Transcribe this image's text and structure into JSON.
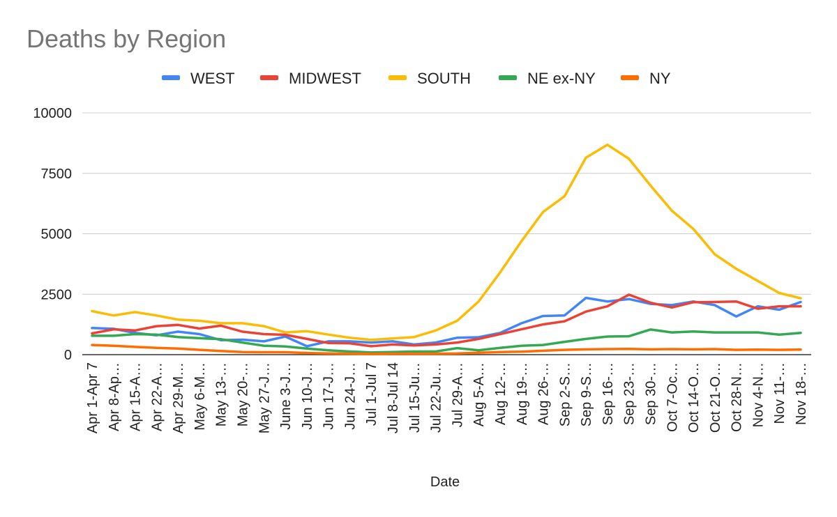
{
  "chart_data": {
    "type": "line",
    "title": "Deaths by Region",
    "xlabel": "Date",
    "ylabel": "",
    "ylim": [
      0,
      10000
    ],
    "yticks": [
      0,
      2500,
      5000,
      7500,
      10000
    ],
    "legend_position": "top",
    "grid": true,
    "categories": [
      "Apr 1-Apr 7",
      "Apr 8-Ap…",
      "Apr 15-A…",
      "Apr 22-A…",
      "Apr 29-M…",
      "May 6-M…",
      "May 13-…",
      "May 20-…",
      "May 27-J…",
      "June 3-J…",
      "Jun 10-J…",
      "Jun 17-J…",
      "Jun 24-J…",
      "Jul 1-Jul 7",
      "Jul 8-Jul 14",
      "Jul 15-Ju…",
      "Jul 22-Ju…",
      "Jul 29-A…",
      "Aug 5-A…",
      "Aug 12-…",
      "Aug 19-…",
      "Aug 26-…",
      "Sep 2-S…",
      "Sep 9-S…",
      "Sep 16-…",
      "Sep 23-…",
      "Sep 30-…",
      "Oct 7-Oc…",
      "Oct 14-O…",
      "Oct 21-O…",
      "Oct 28-N…",
      "Nov 4-N…",
      "Nov 11-…",
      "Nov 18-…"
    ],
    "series": [
      {
        "name": "WEST",
        "color": "#4285f4",
        "values": [
          1100,
          1070,
          900,
          800,
          950,
          850,
          600,
          620,
          550,
          750,
          350,
          550,
          550,
          500,
          550,
          420,
          500,
          700,
          720,
          900,
          1300,
          1600,
          1620,
          2350,
          2200,
          2300,
          2100,
          2050,
          2200,
          2050,
          1580,
          2000,
          1860,
          2180
        ]
      },
      {
        "name": "MIDWEST",
        "color": "#ea4335",
        "values": [
          880,
          1050,
          1000,
          1180,
          1230,
          1080,
          1200,
          950,
          850,
          820,
          650,
          480,
          470,
          350,
          420,
          380,
          420,
          500,
          650,
          850,
          1050,
          1250,
          1380,
          1780,
          2000,
          2480,
          2150,
          1950,
          2170,
          2180,
          2200,
          1900,
          2000,
          2000
        ]
      },
      {
        "name": "SOUTH",
        "color": "#fbbc04",
        "values": [
          1800,
          1620,
          1760,
          1620,
          1450,
          1400,
          1300,
          1300,
          1180,
          920,
          970,
          830,
          700,
          610,
          670,
          730,
          1000,
          1400,
          2200,
          3400,
          4700,
          5900,
          6550,
          8150,
          8680,
          8100,
          7000,
          5950,
          5200,
          4150,
          3550,
          3050,
          2550,
          2330
        ]
      },
      {
        "name": "NE ex-NY",
        "color": "#34a853",
        "values": [
          780,
          780,
          850,
          830,
          730,
          680,
          640,
          500,
          370,
          340,
          250,
          180,
          130,
          90,
          110,
          130,
          130,
          270,
          180,
          280,
          370,
          400,
          530,
          650,
          750,
          760,
          1040,
          920,
          960,
          920,
          920,
          920,
          830,
          900
        ]
      },
      {
        "name": "NY",
        "color": "#ff6d01",
        "values": [
          400,
          370,
          320,
          280,
          250,
          200,
          150,
          110,
          100,
          100,
          70,
          50,
          40,
          30,
          40,
          40,
          40,
          50,
          80,
          110,
          120,
          160,
          200,
          220,
          230,
          240,
          220,
          230,
          220,
          230,
          200,
          210,
          200,
          210
        ]
      }
    ]
  }
}
